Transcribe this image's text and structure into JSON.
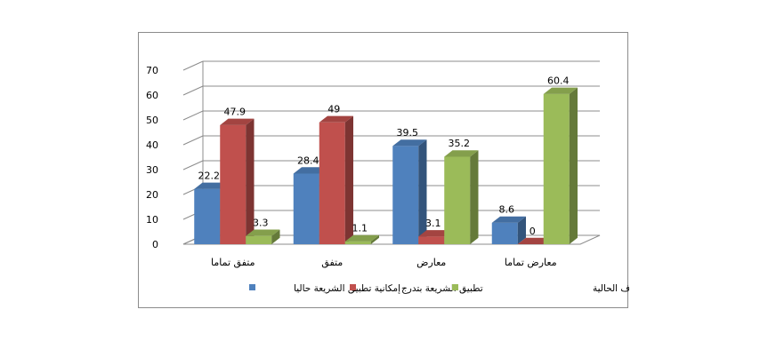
{
  "chart_data": {
    "type": "bar",
    "title": "",
    "xlabel": "",
    "ylabel": "",
    "ylim": [
      0,
      70
    ],
    "yticks": [
      0,
      10,
      20,
      30,
      40,
      50,
      60,
      70
    ],
    "grid": true,
    "legend_position": "bottom",
    "categories": [
      "متفق تماما",
      "متفق",
      "معارض",
      "معارض تماما"
    ],
    "series": [
      {
        "name": "إمكانية تطبيق الشريعة حاليا",
        "color": "#4F81BD",
        "values": [
          22.2,
          28.4,
          39.5,
          8.6
        ]
      },
      {
        "name": "تطبيق الشريعة بتدرج",
        "color": "#C0504D",
        "values": [
          47.9,
          49,
          3.1,
          0
        ]
      },
      {
        "name": "يستحيل تطبيق الشريعة في الظروف الحالية",
        "color": "#9BBB59",
        "values": [
          3.3,
          1.1,
          35.2,
          60.4
        ]
      }
    ]
  }
}
